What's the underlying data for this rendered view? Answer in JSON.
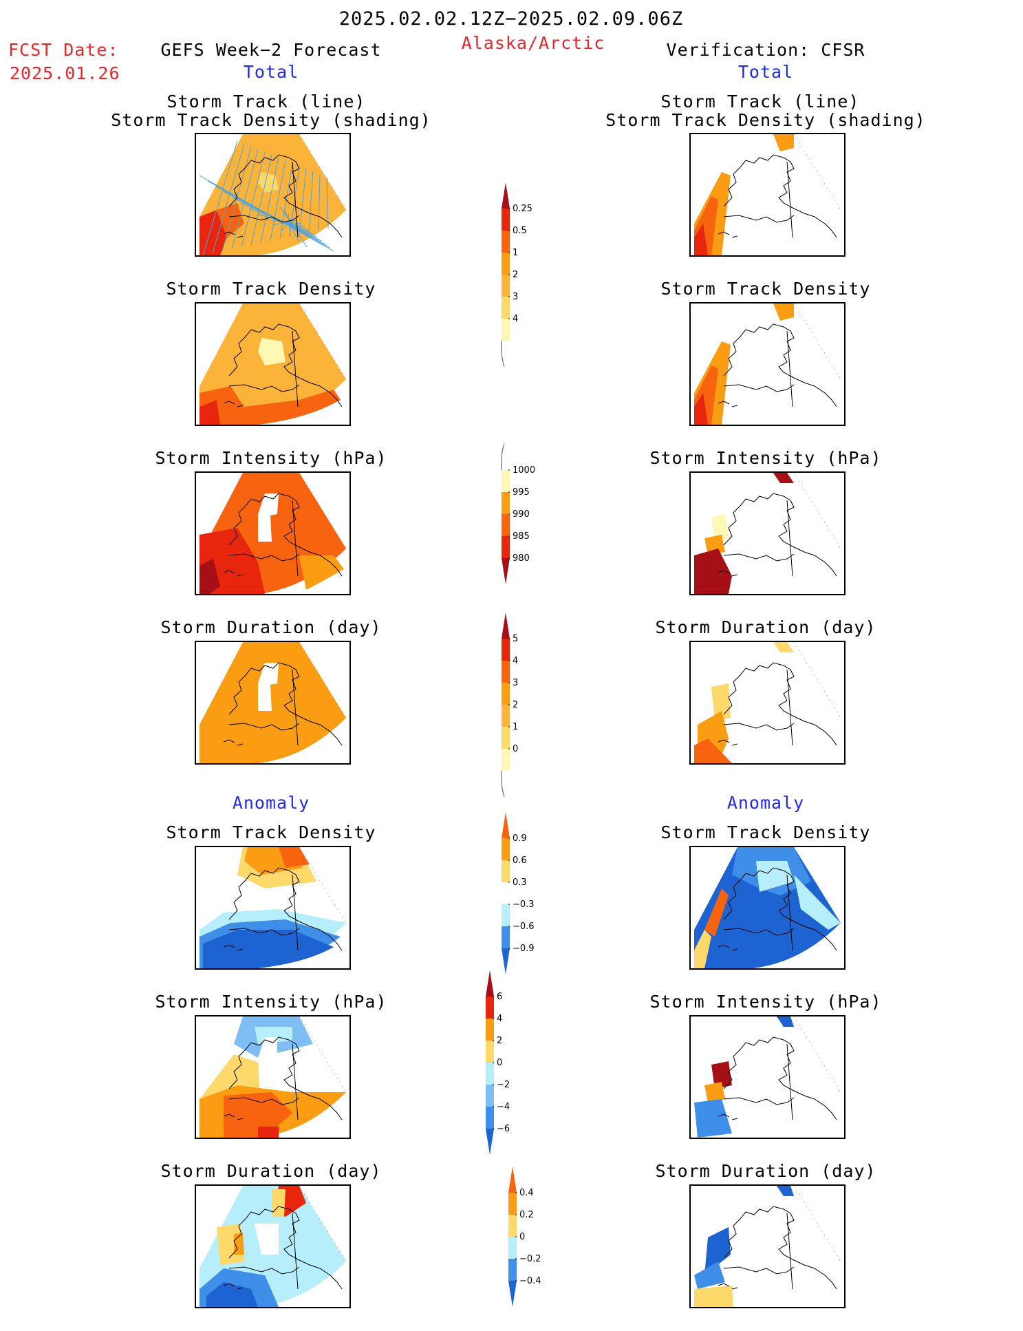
{
  "header": {
    "date_range": "2025.02.02.12Z−2025.02.09.06Z",
    "region": "Alaska/Arctic",
    "fcst_label": "FCST Date:",
    "fcst_date": "2025.01.26",
    "left_title": "GEFS Week−2 Forecast",
    "right_title": "Verification: CFSR",
    "left_section": "Total",
    "right_section": "Total"
  },
  "sections": {
    "total": "Total",
    "anomaly_left": "Anomaly",
    "anomaly_right": "Anomaly"
  },
  "panel_titles": {
    "track_line": "Storm Track (line)",
    "track_shading": "Storm Track Density (shading)",
    "density": "Storm Track Density",
    "intensity": "Storm Intensity (hPa)",
    "duration": "Storm Duration (day)"
  },
  "colors": {
    "pale_yellow": "#fdf9b4",
    "light_orange": "#fcd96a",
    "yellow_orange": "#fbb33a",
    "orange": "#fb9d12",
    "dark_orange": "#f86310",
    "red": "#e8260e",
    "dark_red": "#a50f15",
    "light_blue": "#b6eefc",
    "mid_blue": "#7fbef5",
    "blue": "#3f8ee8",
    "dark_blue": "#1e63d2",
    "track_line": "#4fa3e0"
  },
  "chart_data": [
    {
      "type": "heatmap",
      "title": "Storm Track Density – colorbar (Total)",
      "levels": [
        "0.25",
        "0.5",
        "1",
        "2",
        "3",
        "4"
      ]
    },
    {
      "type": "heatmap",
      "title": "Storm Intensity (hPa) – colorbar (Total)",
      "levels": [
        "1000",
        "995",
        "990",
        "985",
        "980"
      ]
    },
    {
      "type": "heatmap",
      "title": "Storm Duration (day) – colorbar (Total)",
      "levels": [
        "5",
        "4",
        "3",
        "2",
        "1",
        "0"
      ]
    },
    {
      "type": "heatmap",
      "title": "Storm Track Density – colorbar (Anomaly)",
      "levels": [
        "0.9",
        "0.6",
        "0.3",
        "−0.3",
        "−0.6",
        "−0.9"
      ]
    },
    {
      "type": "heatmap",
      "title": "Storm Intensity (hPa) – colorbar (Anomaly)",
      "levels": [
        "6",
        "4",
        "2",
        "0",
        "−2",
        "−4",
        "−6"
      ]
    },
    {
      "type": "heatmap",
      "title": "Storm Duration (day) – colorbar (Anomaly)",
      "levels": [
        "0.4",
        "0.2",
        "0",
        "−0.2",
        "−0.4"
      ]
    }
  ]
}
